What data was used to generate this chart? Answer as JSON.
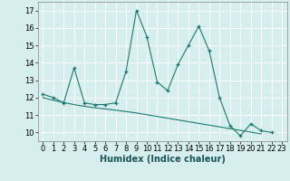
{
  "title": "",
  "xlabel": "Humidex (Indice chaleur)",
  "ylabel": "",
  "x": [
    0,
    1,
    2,
    3,
    4,
    5,
    6,
    7,
    8,
    9,
    10,
    11,
    12,
    13,
    14,
    15,
    16,
    17,
    18,
    19,
    20,
    21,
    22,
    23
  ],
  "y_main": [
    12.2,
    12.0,
    11.7,
    13.7,
    11.7,
    11.6,
    11.6,
    11.7,
    13.5,
    17.0,
    15.5,
    12.9,
    12.4,
    13.9,
    15.0,
    16.1,
    14.7,
    12.0,
    10.4,
    9.8,
    10.5,
    10.1,
    10.0,
    null
  ],
  "y_trend": [
    12.0,
    11.85,
    11.72,
    11.6,
    11.5,
    11.42,
    11.35,
    11.28,
    11.2,
    11.12,
    11.02,
    10.92,
    10.82,
    10.72,
    10.62,
    10.52,
    10.42,
    10.32,
    10.22,
    10.12,
    10.02,
    9.92,
    null,
    null
  ],
  "ylim": [
    9.5,
    17.5
  ],
  "xlim": [
    -0.5,
    23.5
  ],
  "yticks": [
    10,
    11,
    12,
    13,
    14,
    15,
    16,
    17
  ],
  "xticks": [
    0,
    1,
    2,
    3,
    4,
    5,
    6,
    7,
    8,
    9,
    10,
    11,
    12,
    13,
    14,
    15,
    16,
    17,
    18,
    19,
    20,
    21,
    22,
    23
  ],
  "line_color": "#1a7a6e",
  "bg_color": "#d6eeee",
  "grid_color": "#ffffff",
  "tick_fontsize": 6.0,
  "xlabel_fontsize": 7.0
}
